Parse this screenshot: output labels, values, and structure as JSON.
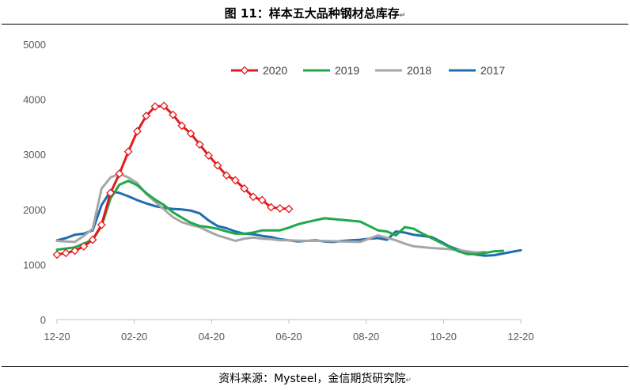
{
  "title": "图 11：样本五大品种钢材总库存",
  "source": "资料来源：Mysteel，金信期货研究院",
  "chart_data": {
    "type": "line",
    "title": "图 11：样本五大品种钢材总库存",
    "xlabel": "",
    "ylabel": "",
    "x_ticks": [
      "12-20",
      "02-20",
      "04-20",
      "06-20",
      "08-20",
      "10-20",
      "12-20"
    ],
    "y_ticks": [
      "0",
      "1000",
      "2000",
      "3000",
      "4000",
      "5000"
    ],
    "ylim": [
      0,
      5000
    ],
    "xlim": [
      0,
      52
    ],
    "legend_position": "top-right",
    "grid": false,
    "series": [
      {
        "name": "2020",
        "color": "#e31a1c",
        "marker": "diamond",
        "x": [
          0,
          1,
          2,
          3,
          4,
          5,
          6,
          7,
          8,
          9,
          10,
          11,
          12,
          13,
          14,
          15,
          16,
          17,
          18,
          19,
          20,
          21,
          22,
          23,
          24,
          25,
          26,
          27
        ],
        "values": [
          1180,
          1210,
          1250,
          1330,
          1450,
          1720,
          2300,
          2650,
          3050,
          3420,
          3700,
          3870,
          3880,
          3720,
          3520,
          3380,
          3180,
          2980,
          2800,
          2620,
          2530,
          2380,
          2230,
          2170,
          2040,
          2020,
          2010,
          null
        ]
      },
      {
        "name": "2019",
        "color": "#20a84a",
        "x": [
          0,
          2,
          4,
          5,
          6,
          7,
          8,
          9,
          10,
          11,
          12,
          13,
          14,
          15,
          16,
          17,
          18,
          19,
          20,
          21,
          22,
          23,
          24,
          25,
          26,
          27,
          28,
          30,
          32,
          34,
          35,
          36,
          37,
          38,
          39,
          40,
          41,
          42,
          43,
          44,
          45,
          46,
          47,
          48,
          49,
          50
        ],
        "values": [
          1270,
          1310,
          1450,
          1700,
          2200,
          2450,
          2520,
          2440,
          2300,
          2180,
          2080,
          1950,
          1850,
          1760,
          1700,
          1680,
          1650,
          1600,
          1560,
          1560,
          1580,
          1620,
          1620,
          1620,
          1670,
          1730,
          1770,
          1840,
          1810,
          1780,
          1700,
          1620,
          1600,
          1530,
          1680,
          1650,
          1560,
          1480,
          1400,
          1320,
          1240,
          1190,
          1190,
          1210,
          1240,
          1250
        ]
      },
      {
        "name": "2018",
        "color": "#a6a6a6",
        "x": [
          0,
          1,
          2,
          3,
          4,
          5,
          6,
          7,
          8,
          9,
          10,
          11,
          12,
          13,
          14,
          15,
          16,
          17,
          18,
          19,
          20,
          21,
          22,
          23,
          24,
          25,
          26,
          28,
          30,
          32,
          34,
          36,
          38,
          39,
          40,
          42,
          44,
          46,
          47,
          48
        ],
        "values": [
          1430,
          1420,
          1410,
          1520,
          1650,
          2380,
          2580,
          2650,
          2580,
          2480,
          2280,
          2140,
          2000,
          1860,
          1770,
          1720,
          1680,
          1600,
          1530,
          1480,
          1430,
          1470,
          1490,
          1470,
          1460,
          1440,
          1440,
          1430,
          1430,
          1420,
          1410,
          1530,
          1440,
          1380,
          1330,
          1300,
          1280,
          1240,
          1220,
          1230
        ]
      },
      {
        "name": "2017",
        "color": "#1f6db0",
        "x": [
          0,
          1,
          2,
          3,
          4,
          5,
          6,
          7,
          8,
          9,
          10,
          11,
          12,
          13,
          14,
          15,
          16,
          17,
          18,
          19,
          20,
          21,
          22,
          23,
          24,
          25,
          26,
          27,
          28,
          29,
          30,
          31,
          32,
          33,
          34,
          35,
          36,
          37,
          38,
          39,
          40,
          41,
          42,
          43,
          44,
          45,
          46,
          47,
          48,
          49,
          50,
          51,
          52
        ],
        "values": [
          1440,
          1480,
          1540,
          1560,
          1620,
          2080,
          2330,
          2300,
          2240,
          2170,
          2110,
          2060,
          2030,
          2010,
          2000,
          1980,
          1930,
          1800,
          1700,
          1660,
          1600,
          1560,
          1550,
          1520,
          1500,
          1460,
          1440,
          1420,
          1430,
          1440,
          1420,
          1410,
          1430,
          1440,
          1450,
          1470,
          1480,
          1450,
          1600,
          1580,
          1540,
          1520,
          1500,
          1420,
          1330,
          1270,
          1220,
          1180,
          1160,
          1170,
          1200,
          1230,
          1260
        ]
      }
    ]
  },
  "colors": {
    "text": "#595959",
    "legend_text": "#404040"
  }
}
